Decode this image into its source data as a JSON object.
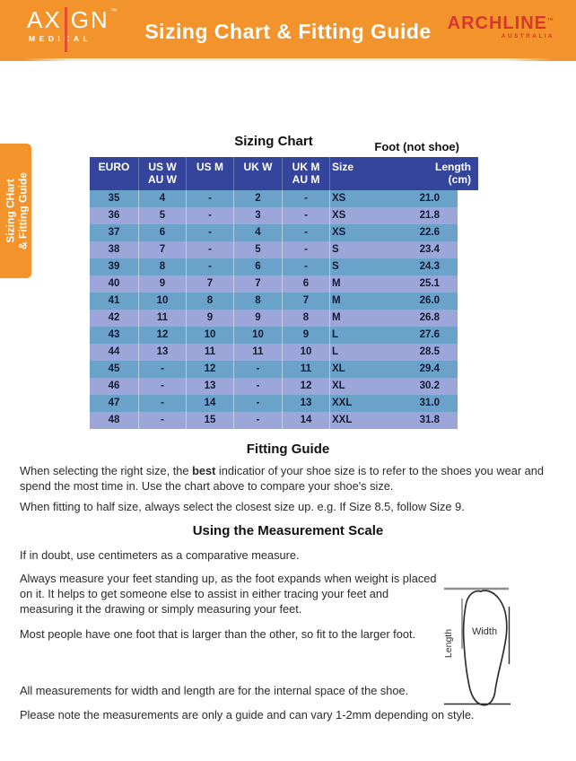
{
  "header": {
    "logo": {
      "part1": "AX",
      "part2": "GN",
      "tm": "™",
      "subtitle": "MEDICAL"
    },
    "title": "Sizing Chart & Fitting Guide",
    "brand": {
      "name": "ARCHLINE",
      "tm": "™",
      "subtitle": "AUSTRALIA"
    }
  },
  "side_tab": {
    "line1": "Sizing CHart",
    "line2": "& Fitting Guide"
  },
  "sizing_chart": {
    "title": "Sizing Chart",
    "foot_note": "Foot (not shoe)",
    "columns": [
      {
        "label": "EURO",
        "sub": ""
      },
      {
        "label": "US W",
        "sub": "AU W"
      },
      {
        "label": "US M",
        "sub": ""
      },
      {
        "label": "UK W",
        "sub": ""
      },
      {
        "label": "UK M",
        "sub": "AU M"
      },
      {
        "label": "Size",
        "sub": ""
      },
      {
        "label": "Length",
        "sub": "(cm)"
      }
    ],
    "rows": [
      [
        "35",
        "4",
        "-",
        "2",
        "-",
        "XS",
        "21.0"
      ],
      [
        "36",
        "5",
        "-",
        "3",
        "-",
        "XS",
        "21.8"
      ],
      [
        "37",
        "6",
        "-",
        "4",
        "-",
        "XS",
        "22.6"
      ],
      [
        "38",
        "7",
        "-",
        "5",
        "-",
        "S",
        "23.4"
      ],
      [
        "39",
        "8",
        "-",
        "6",
        "-",
        "S",
        "24.3"
      ],
      [
        "40",
        "9",
        "7",
        "7",
        "6",
        "M",
        "25.1"
      ],
      [
        "41",
        "10",
        "8",
        "8",
        "7",
        "M",
        "26.0"
      ],
      [
        "42",
        "11",
        "9",
        "9",
        "8",
        "M",
        "26.8"
      ],
      [
        "43",
        "12",
        "10",
        "10",
        "9",
        "L",
        "27.6"
      ],
      [
        "44",
        "13",
        "11",
        "11",
        "10",
        "L",
        "28.5"
      ],
      [
        "45",
        "-",
        "12",
        "-",
        "11",
        "XL",
        "29.4"
      ],
      [
        "46",
        "-",
        "13",
        "-",
        "12",
        "XL",
        "30.2"
      ],
      [
        "47",
        "-",
        "14",
        "-",
        "13",
        "XXL",
        "31.0"
      ],
      [
        "48",
        "-",
        "15",
        "-",
        "14",
        "XXL",
        "31.8"
      ]
    ]
  },
  "fitting_guide": {
    "title": "Fitting Guide",
    "p1_before": "When selecting the right size, the ",
    "p1_bold": "best",
    "p1_after": " indicatior of your shoe size is to refer to the shoes you wear and spend the most time in. Use the chart above to compare your shoe's size.",
    "p2": "When fitting to half size, always select the closest size up. e.g. If Size 8.5, follow Size 9."
  },
  "measurement": {
    "title": "Using the Measurement Scale",
    "p1": "If in doubt, use centimeters as a comparative measure.",
    "p2": "Always measure your feet standing up, as the foot expands when weight is placed on it. It helps to get someone else to assist in either tracing your feet and measuring it the drawing or simply measuring your feet.",
    "p3": "Most people have one foot that is larger than the other, so fit to the larger foot.",
    "p4": "All measurements for width and length are for the internal space of the shoe.",
    "p5": "Please note the measurements are only a guide and can vary 1-2mm depending on style.",
    "diagram": {
      "width_label": "Width",
      "length_label": "Length"
    }
  },
  "colors": {
    "banner_orange": "#F2932C",
    "brand_red": "#D9372E",
    "logo_line_red": "#E44D2E",
    "table_header_navy": "#35459C",
    "row_teal": "#6BA2C9",
    "row_lavender": "#9CA6D8"
  }
}
